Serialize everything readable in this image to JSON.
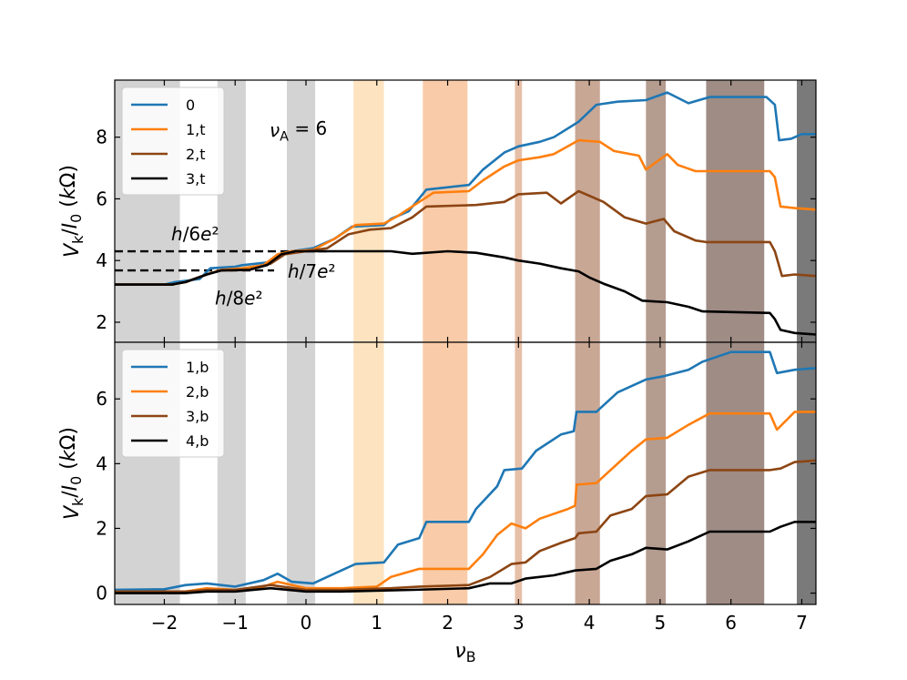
{
  "chart_data": [
    {
      "id": "top",
      "type": "line",
      "ylabel": "V_k/I_0 (kΩ)",
      "xlim": [
        -2.7,
        7.2
      ],
      "ylim": [
        1.35,
        9.85
      ],
      "yticks": [
        2,
        4,
        6,
        8
      ],
      "annotation_text": "ν_A = 6",
      "legend_position": "upper-left",
      "plateaus": [
        {
          "label": "h/6e²",
          "y": 4.3,
          "x_end": 0.3
        },
        {
          "label": "h/7e²",
          "y": 3.68,
          "x_end": -0.45
        },
        {
          "label": "h/8e²",
          "y": 3.22,
          "x_end": -1.8
        }
      ],
      "series": [
        {
          "name": "0",
          "color": "#1f77b4",
          "points": [
            [
              -2.7,
              3.22
            ],
            [
              -2.0,
              3.22
            ],
            [
              -1.85,
              3.3
            ],
            [
              -1.5,
              3.4
            ],
            [
              -1.35,
              3.75
            ],
            [
              -1.0,
              3.8
            ],
            [
              -0.9,
              3.85
            ],
            [
              -0.5,
              3.95
            ],
            [
              -0.4,
              4.2
            ],
            [
              -0.2,
              4.3
            ],
            [
              0.1,
              4.4
            ],
            [
              0.4,
              4.7
            ],
            [
              0.65,
              5.1
            ],
            [
              1.1,
              5.15
            ],
            [
              1.2,
              5.35
            ],
            [
              1.45,
              5.6
            ],
            [
              1.7,
              6.3
            ],
            [
              2.3,
              6.45
            ],
            [
              2.5,
              6.95
            ],
            [
              2.8,
              7.5
            ],
            [
              3.0,
              7.7
            ],
            [
              3.3,
              7.85
            ],
            [
              3.5,
              8.0
            ],
            [
              3.85,
              8.5
            ],
            [
              4.1,
              9.05
            ],
            [
              4.4,
              9.15
            ],
            [
              4.8,
              9.2
            ],
            [
              5.1,
              9.45
            ],
            [
              5.4,
              9.1
            ],
            [
              5.7,
              9.3
            ],
            [
              6.5,
              9.3
            ],
            [
              6.62,
              9.05
            ],
            [
              6.68,
              7.9
            ],
            [
              6.85,
              7.95
            ],
            [
              7.0,
              8.1
            ],
            [
              7.2,
              8.1
            ]
          ]
        },
        {
          "name": "1,t",
          "color": "#ff7f0e",
          "points": [
            [
              -2.7,
              3.22
            ],
            [
              -1.9,
              3.22
            ],
            [
              -1.7,
              3.3
            ],
            [
              -1.4,
              3.55
            ],
            [
              -1.2,
              3.7
            ],
            [
              -0.9,
              3.75
            ],
            [
              -0.6,
              3.85
            ],
            [
              -0.4,
              4.2
            ],
            [
              -0.2,
              4.3
            ],
            [
              0.1,
              4.35
            ],
            [
              0.4,
              4.7
            ],
            [
              0.7,
              5.15
            ],
            [
              1.1,
              5.2
            ],
            [
              1.3,
              5.45
            ],
            [
              1.6,
              5.9
            ],
            [
              1.8,
              6.2
            ],
            [
              2.3,
              6.25
            ],
            [
              2.5,
              6.6
            ],
            [
              2.8,
              7.05
            ],
            [
              3.0,
              7.25
            ],
            [
              3.3,
              7.35
            ],
            [
              3.5,
              7.45
            ],
            [
              3.85,
              7.9
            ],
            [
              4.15,
              7.85
            ],
            [
              4.35,
              7.55
            ],
            [
              4.7,
              7.4
            ],
            [
              4.8,
              6.95
            ],
            [
              5.1,
              7.45
            ],
            [
              5.25,
              7.1
            ],
            [
              5.5,
              6.9
            ],
            [
              6.55,
              6.9
            ],
            [
              6.62,
              6.7
            ],
            [
              6.7,
              5.75
            ],
            [
              6.9,
              5.7
            ],
            [
              7.2,
              5.65
            ]
          ]
        },
        {
          "name": "2,t",
          "color": "#8c4513",
          "points": [
            [
              -2.7,
              3.22
            ],
            [
              -1.9,
              3.22
            ],
            [
              -1.7,
              3.3
            ],
            [
              -1.4,
              3.55
            ],
            [
              -1.2,
              3.68
            ],
            [
              -0.8,
              3.7
            ],
            [
              -0.5,
              3.9
            ],
            [
              -0.3,
              4.2
            ],
            [
              0.0,
              4.3
            ],
            [
              0.3,
              4.4
            ],
            [
              0.6,
              4.85
            ],
            [
              0.9,
              5.0
            ],
            [
              1.2,
              5.05
            ],
            [
              1.5,
              5.4
            ],
            [
              1.7,
              5.75
            ],
            [
              2.4,
              5.8
            ],
            [
              2.8,
              5.9
            ],
            [
              3.0,
              6.15
            ],
            [
              3.4,
              6.2
            ],
            [
              3.6,
              5.85
            ],
            [
              3.85,
              6.25
            ],
            [
              4.2,
              5.9
            ],
            [
              4.5,
              5.4
            ],
            [
              4.8,
              5.2
            ],
            [
              5.05,
              5.35
            ],
            [
              5.2,
              4.95
            ],
            [
              5.5,
              4.65
            ],
            [
              5.65,
              4.6
            ],
            [
              6.55,
              4.6
            ],
            [
              6.62,
              4.3
            ],
            [
              6.72,
              3.5
            ],
            [
              6.9,
              3.55
            ],
            [
              7.2,
              3.5
            ]
          ]
        },
        {
          "name": "3,t",
          "color": "#000000",
          "points": [
            [
              -2.7,
              3.22
            ],
            [
              -1.9,
              3.22
            ],
            [
              -1.7,
              3.3
            ],
            [
              -1.4,
              3.55
            ],
            [
              -1.2,
              3.68
            ],
            [
              -0.8,
              3.7
            ],
            [
              -0.55,
              3.85
            ],
            [
              -0.35,
              4.2
            ],
            [
              -0.15,
              4.3
            ],
            [
              0.6,
              4.3
            ],
            [
              1.2,
              4.3
            ],
            [
              1.5,
              4.22
            ],
            [
              2.0,
              4.3
            ],
            [
              2.4,
              4.25
            ],
            [
              2.8,
              4.1
            ],
            [
              3.0,
              4.0
            ],
            [
              3.3,
              3.9
            ],
            [
              3.6,
              3.75
            ],
            [
              3.85,
              3.65
            ],
            [
              4.0,
              3.45
            ],
            [
              4.2,
              3.25
            ],
            [
              4.5,
              3.0
            ],
            [
              4.75,
              2.7
            ],
            [
              5.1,
              2.65
            ],
            [
              5.4,
              2.5
            ],
            [
              5.6,
              2.35
            ],
            [
              6.55,
              2.3
            ],
            [
              6.62,
              2.1
            ],
            [
              6.7,
              1.75
            ],
            [
              6.9,
              1.65
            ],
            [
              7.2,
              1.6
            ]
          ]
        }
      ]
    },
    {
      "id": "bottom",
      "type": "line",
      "xlabel": "ν_B",
      "ylabel": "V_k/I_0 (kΩ)",
      "xlim": [
        -2.7,
        7.2
      ],
      "ylim": [
        -0.35,
        7.75
      ],
      "yticks": [
        0,
        2,
        4,
        6
      ],
      "xticks": [
        -2,
        -1,
        0,
        1,
        2,
        3,
        4,
        5,
        6,
        7
      ],
      "legend_position": "upper-left",
      "series": [
        {
          "name": "1,b",
          "color": "#1f77b4",
          "points": [
            [
              -2.7,
              0.1
            ],
            [
              -2.0,
              0.12
            ],
            [
              -1.7,
              0.25
            ],
            [
              -1.4,
              0.3
            ],
            [
              -1.0,
              0.2
            ],
            [
              -0.6,
              0.4
            ],
            [
              -0.4,
              0.6
            ],
            [
              -0.2,
              0.35
            ],
            [
              0.1,
              0.3
            ],
            [
              0.4,
              0.6
            ],
            [
              0.7,
              0.9
            ],
            [
              1.1,
              0.95
            ],
            [
              1.3,
              1.5
            ],
            [
              1.6,
              1.7
            ],
            [
              1.7,
              2.2
            ],
            [
              2.3,
              2.2
            ],
            [
              2.4,
              2.6
            ],
            [
              2.7,
              3.3
            ],
            [
              2.8,
              3.8
            ],
            [
              3.05,
              3.85
            ],
            [
              3.25,
              4.4
            ],
            [
              3.6,
              4.9
            ],
            [
              3.78,
              5.0
            ],
            [
              3.82,
              5.6
            ],
            [
              4.1,
              5.6
            ],
            [
              4.4,
              6.2
            ],
            [
              4.8,
              6.6
            ],
            [
              5.05,
              6.7
            ],
            [
              5.4,
              6.9
            ],
            [
              5.6,
              7.15
            ],
            [
              6.0,
              7.45
            ],
            [
              6.55,
              7.45
            ],
            [
              6.65,
              6.8
            ],
            [
              6.9,
              6.9
            ],
            [
              7.2,
              6.95
            ]
          ]
        },
        {
          "name": "2,b",
          "color": "#ff7f0e",
          "points": [
            [
              -2.7,
              0.05
            ],
            [
              -1.7,
              0.05
            ],
            [
              -1.4,
              0.15
            ],
            [
              -1.0,
              0.1
            ],
            [
              -0.6,
              0.2
            ],
            [
              -0.4,
              0.35
            ],
            [
              0.0,
              0.15
            ],
            [
              0.5,
              0.15
            ],
            [
              1.0,
              0.2
            ],
            [
              1.2,
              0.5
            ],
            [
              1.6,
              0.75
            ],
            [
              2.3,
              0.75
            ],
            [
              2.5,
              1.2
            ],
            [
              2.7,
              1.8
            ],
            [
              2.9,
              2.15
            ],
            [
              3.1,
              2.0
            ],
            [
              3.3,
              2.3
            ],
            [
              3.7,
              2.6
            ],
            [
              3.8,
              2.7
            ],
            [
              3.82,
              3.35
            ],
            [
              4.1,
              3.4
            ],
            [
              4.3,
              3.8
            ],
            [
              4.6,
              4.4
            ],
            [
              4.8,
              4.75
            ],
            [
              5.1,
              4.8
            ],
            [
              5.4,
              5.2
            ],
            [
              5.7,
              5.55
            ],
            [
              6.55,
              5.55
            ],
            [
              6.65,
              5.05
            ],
            [
              6.9,
              5.6
            ],
            [
              7.2,
              5.6
            ]
          ]
        },
        {
          "name": "3,b",
          "color": "#8c4513",
          "points": [
            [
              -2.7,
              0.05
            ],
            [
              -1.7,
              0.05
            ],
            [
              -1.4,
              0.1
            ],
            [
              -1.0,
              0.1
            ],
            [
              -0.5,
              0.25
            ],
            [
              0.0,
              0.1
            ],
            [
              0.5,
              0.1
            ],
            [
              1.2,
              0.15
            ],
            [
              1.6,
              0.2
            ],
            [
              2.3,
              0.25
            ],
            [
              2.6,
              0.5
            ],
            [
              2.9,
              0.9
            ],
            [
              3.1,
              0.95
            ],
            [
              3.3,
              1.3
            ],
            [
              3.6,
              1.55
            ],
            [
              3.8,
              1.7
            ],
            [
              3.85,
              1.85
            ],
            [
              4.1,
              1.9
            ],
            [
              4.3,
              2.4
            ],
            [
              4.6,
              2.6
            ],
            [
              4.8,
              3.0
            ],
            [
              5.1,
              3.05
            ],
            [
              5.4,
              3.6
            ],
            [
              5.7,
              3.8
            ],
            [
              6.55,
              3.8
            ],
            [
              6.7,
              3.85
            ],
            [
              6.9,
              4.05
            ],
            [
              7.2,
              4.1
            ]
          ]
        },
        {
          "name": "4,b",
          "color": "#000000",
          "points": [
            [
              -2.7,
              0.0
            ],
            [
              -1.7,
              0.0
            ],
            [
              -1.4,
              0.05
            ],
            [
              -1.0,
              0.05
            ],
            [
              -0.5,
              0.15
            ],
            [
              0.0,
              0.05
            ],
            [
              0.5,
              0.05
            ],
            [
              1.5,
              0.1
            ],
            [
              2.3,
              0.15
            ],
            [
              2.6,
              0.3
            ],
            [
              2.9,
              0.3
            ],
            [
              3.1,
              0.45
            ],
            [
              3.5,
              0.55
            ],
            [
              3.8,
              0.7
            ],
            [
              4.1,
              0.75
            ],
            [
              4.3,
              1.0
            ],
            [
              4.6,
              1.2
            ],
            [
              4.8,
              1.4
            ],
            [
              5.1,
              1.35
            ],
            [
              5.4,
              1.6
            ],
            [
              5.7,
              1.9
            ],
            [
              6.55,
              1.9
            ],
            [
              6.7,
              2.05
            ],
            [
              6.9,
              2.2
            ],
            [
              7.2,
              2.2
            ]
          ]
        }
      ]
    }
  ],
  "shaded_bands": [
    {
      "x0": -2.7,
      "x1": -1.78,
      "color": "#d3d3d3"
    },
    {
      "x0": -1.25,
      "x1": -0.85,
      "color": "#d3d3d3"
    },
    {
      "x0": -0.27,
      "x1": 0.13,
      "color": "#d3d3d3"
    },
    {
      "x0": 0.67,
      "x1": 1.1,
      "color": "#fde3c0"
    },
    {
      "x0": 1.65,
      "x1": 2.28,
      "color": "#f9cba8"
    },
    {
      "x0": 2.95,
      "x1": 3.05,
      "color": "#e6bfa8"
    },
    {
      "x0": 3.8,
      "x1": 4.15,
      "color": "#c9a795"
    },
    {
      "x0": 4.8,
      "x1": 5.08,
      "color": "#b49c8f"
    },
    {
      "x0": 5.65,
      "x1": 6.47,
      "color": "#9e8c85"
    },
    {
      "x0": 6.93,
      "x1": 7.2,
      "color": "#7a7a7a"
    }
  ]
}
